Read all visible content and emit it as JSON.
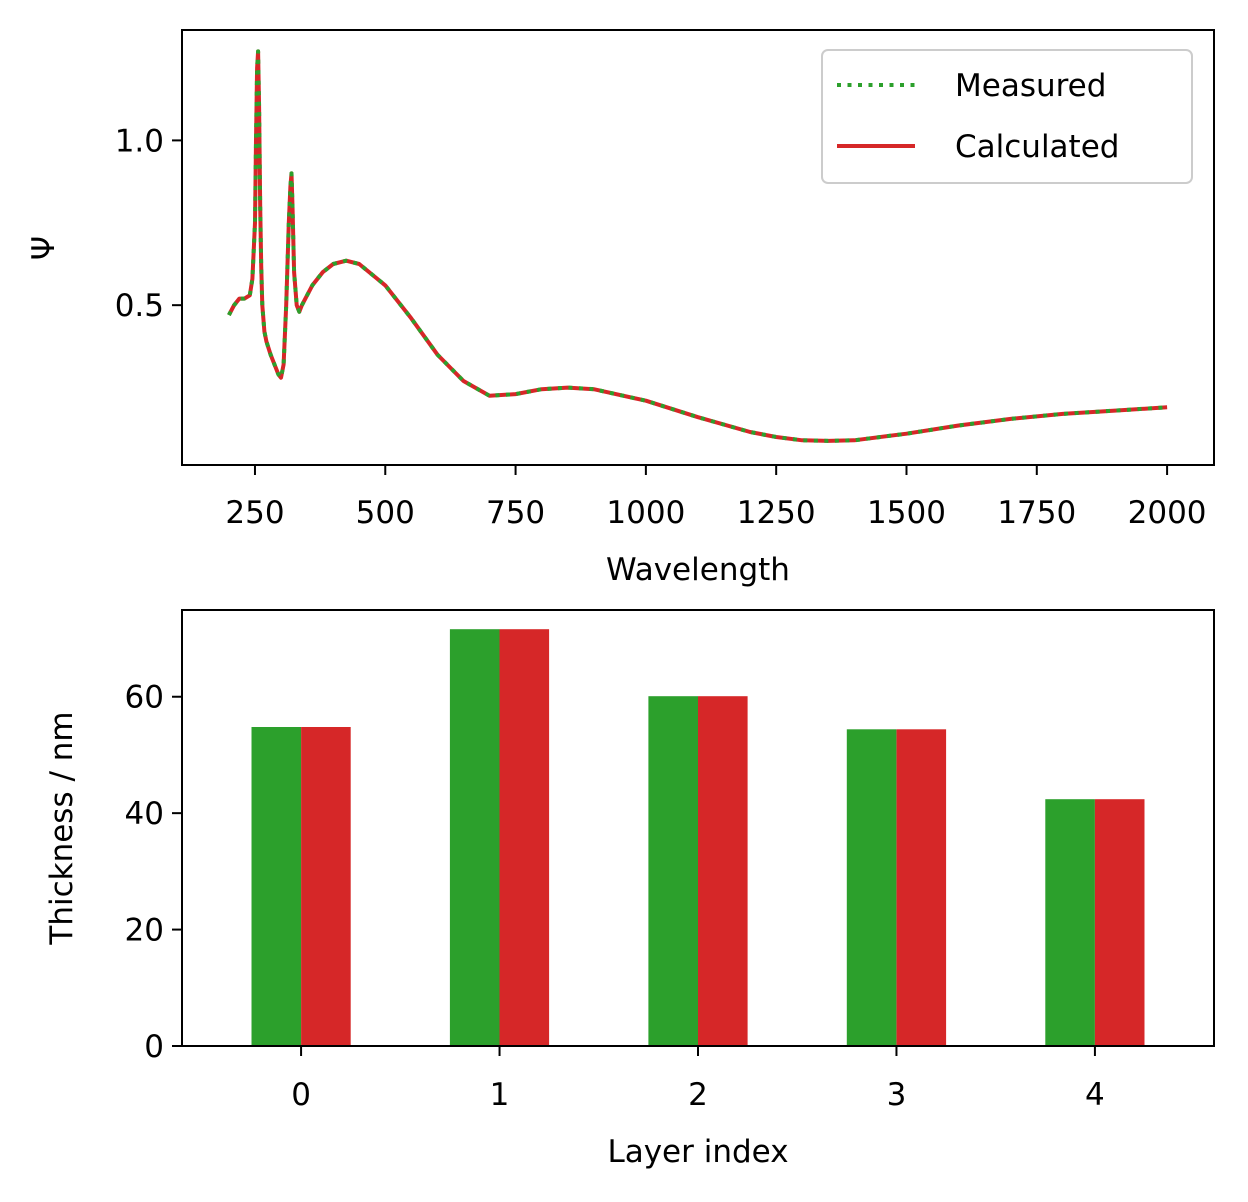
{
  "chart_data": [
    {
      "type": "line",
      "xlabel": "Wavelength",
      "ylabel": "Ψ",
      "xlim": [
        110,
        2090
      ],
      "ylim": [
        0.015,
        1.335
      ],
      "xticks": [
        250,
        500,
        750,
        1000,
        1250,
        1500,
        1750,
        2000
      ],
      "xtick_labels": [
        "250",
        "500",
        "750",
        "1000",
        "1250",
        "1500",
        "1750",
        "2000"
      ],
      "yticks": [
        0.5,
        1.0
      ],
      "ytick_labels": [
        "0.5",
        "1.0"
      ],
      "grid": false,
      "legend_position": "top-right",
      "x": [
        200,
        210,
        220,
        230,
        240,
        245,
        250,
        252,
        254,
        256,
        258,
        260,
        262,
        264,
        268,
        272,
        280,
        290,
        295,
        300,
        305,
        310,
        315,
        318,
        320,
        322,
        325,
        330,
        335,
        340,
        360,
        380,
        400,
        425,
        450,
        500,
        550,
        600,
        650,
        700,
        750,
        800,
        850,
        900,
        1000,
        1100,
        1200,
        1250,
        1300,
        1350,
        1400,
        1500,
        1600,
        1700,
        1800,
        1900,
        2000
      ],
      "series": [
        {
          "name": "Measured",
          "color": "#2ca02c",
          "style": "dotted",
          "values": [
            0.47,
            0.5,
            0.52,
            0.52,
            0.53,
            0.58,
            0.75,
            1.0,
            1.22,
            1.27,
            1.1,
            0.8,
            0.62,
            0.5,
            0.42,
            0.39,
            0.35,
            0.31,
            0.29,
            0.28,
            0.32,
            0.5,
            0.75,
            0.86,
            0.9,
            0.8,
            0.6,
            0.5,
            0.48,
            0.5,
            0.56,
            0.6,
            0.625,
            0.635,
            0.625,
            0.56,
            0.46,
            0.35,
            0.27,
            0.225,
            0.23,
            0.245,
            0.25,
            0.245,
            0.21,
            0.16,
            0.115,
            0.1,
            0.09,
            0.088,
            0.09,
            0.11,
            0.135,
            0.155,
            0.17,
            0.18,
            0.19
          ]
        },
        {
          "name": "Calculated",
          "color": "#d62728",
          "style": "solid",
          "values": [
            0.47,
            0.5,
            0.52,
            0.52,
            0.53,
            0.58,
            0.75,
            1.0,
            1.22,
            1.27,
            1.1,
            0.8,
            0.62,
            0.5,
            0.42,
            0.39,
            0.35,
            0.31,
            0.29,
            0.28,
            0.32,
            0.5,
            0.75,
            0.86,
            0.9,
            0.8,
            0.6,
            0.5,
            0.48,
            0.5,
            0.56,
            0.6,
            0.625,
            0.635,
            0.625,
            0.56,
            0.46,
            0.35,
            0.27,
            0.225,
            0.23,
            0.245,
            0.25,
            0.245,
            0.21,
            0.16,
            0.115,
            0.1,
            0.09,
            0.088,
            0.09,
            0.11,
            0.135,
            0.155,
            0.17,
            0.18,
            0.19
          ]
        }
      ]
    },
    {
      "type": "bar",
      "xlabel": "Layer index",
      "ylabel": "Thickness / nm",
      "categories": [
        "0",
        "1",
        "2",
        "3",
        "4"
      ],
      "ylim": [
        0,
        74.9
      ],
      "yticks": [
        0,
        20,
        40,
        60
      ],
      "ytick_labels": [
        "0",
        "20",
        "40",
        "60"
      ],
      "grid": false,
      "series": [
        {
          "color": "#2ca02c",
          "values": [
            54.8,
            71.6,
            60.1,
            54.4,
            42.4
          ]
        },
        {
          "color": "#d62728",
          "values": [
            54.8,
            71.6,
            60.1,
            54.4,
            42.4
          ]
        }
      ]
    }
  ]
}
